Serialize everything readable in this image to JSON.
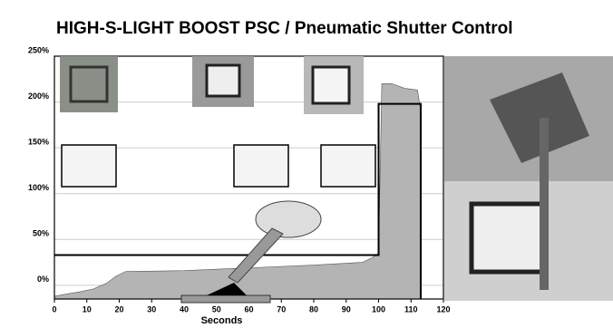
{
  "chart_data": {
    "type": "area",
    "title": "HIGH-S-LIGHT  BOOST PSC / Pneumatic Shutter Control",
    "x_label": "Seconds",
    "xlim": [
      0,
      120
    ],
    "xticks": [
      0,
      10,
      20,
      30,
      40,
      50,
      60,
      70,
      80,
      90,
      100,
      110,
      120
    ],
    "ylim": [
      -15,
      250
    ],
    "yticks": [
      {
        "value": 0,
        "label": "0%"
      },
      {
        "value": 50,
        "label": "50%"
      },
      {
        "value": 100,
        "label": "100%"
      },
      {
        "value": 150,
        "label": "150%"
      },
      {
        "value": 200,
        "label": "200%"
      },
      {
        "value": 250,
        "label": "250%"
      }
    ],
    "grid": true,
    "series": [
      {
        "color": "#b4b4b4",
        "fill": true,
        "x": [
          0,
          3,
          8,
          12,
          16,
          19,
          22,
          40,
          60,
          80,
          95,
          98,
          100,
          101,
          104,
          108,
          112,
          113,
          113
        ],
        "values": [
          -12,
          -10,
          -7,
          -4,
          2,
          10,
          15,
          16,
          19,
          22,
          25,
          30,
          35,
          220,
          220,
          215,
          213,
          190,
          -15
        ]
      },
      {
        "color": "#000000",
        "fill": false,
        "x": [
          0,
          100,
          100,
          113,
          113
        ],
        "values": [
          33,
          33,
          198,
          198,
          -15
        ]
      }
    ]
  }
}
